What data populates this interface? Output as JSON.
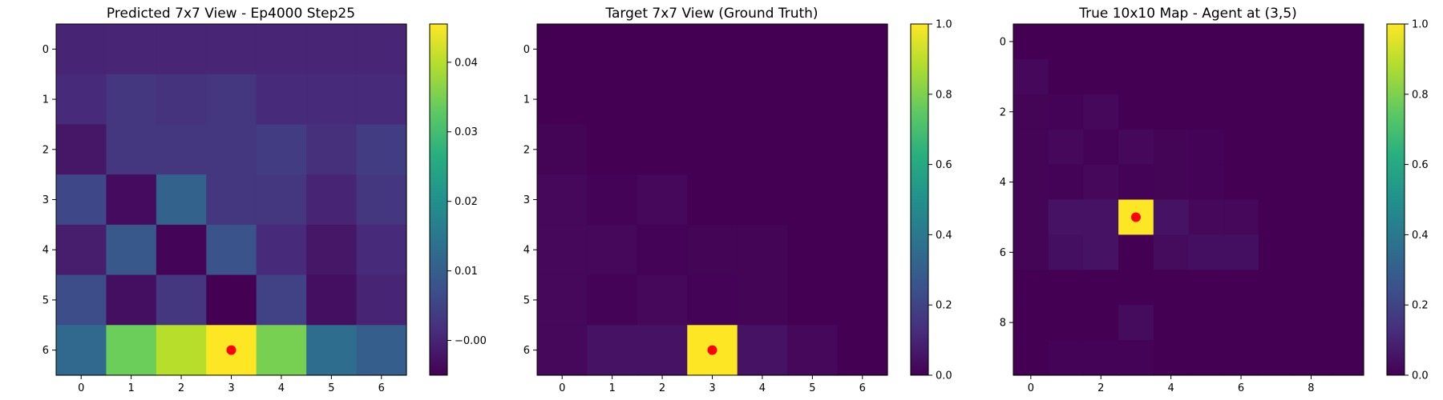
{
  "chart_data": [
    {
      "type": "heatmap",
      "title": "Predicted 7x7 View - Ep4000 Step25",
      "colormap": "viridis",
      "rows": 7,
      "cols": 7,
      "xticks": [
        0,
        1,
        2,
        3,
        4,
        5,
        6
      ],
      "yticks": [
        0,
        1,
        2,
        3,
        4,
        5,
        6
      ],
      "vmin": -0.005,
      "vmax": 0.0455,
      "colorbar_ticks": [
        0.04,
        0.03,
        0.02,
        0.01,
        -0.0
      ],
      "colorbar_labels": [
        "0.04",
        "0.03",
        "0.02",
        "0.01",
        "−0.00"
      ],
      "values": [
        [
          0.0,
          0.0002,
          0.0002,
          0.0002,
          0.0002,
          0.0002,
          0.0002
        ],
        [
          0.001,
          0.003,
          0.0025,
          0.003,
          0.001,
          0.001,
          0.001
        ],
        [
          -0.002,
          0.003,
          0.003,
          0.003,
          0.004,
          0.002,
          0.004
        ],
        [
          0.006,
          -0.0035,
          0.011,
          0.003,
          0.003,
          0.0,
          0.003
        ],
        [
          -0.001,
          0.009,
          -0.0045,
          0.008,
          0.001,
          -0.002,
          0.001
        ],
        [
          0.007,
          -0.003,
          0.003,
          -0.005,
          0.005,
          -0.003,
          0.0
        ],
        [
          0.012,
          0.034,
          0.04,
          0.0455,
          0.035,
          0.013,
          0.01
        ]
      ],
      "marker": {
        "row": 6,
        "col": 3,
        "color": "#ff0000"
      }
    },
    {
      "type": "heatmap",
      "title": "Target 7x7 View (Ground Truth)",
      "colormap": "viridis",
      "rows": 7,
      "cols": 7,
      "xticks": [
        0,
        1,
        2,
        3,
        4,
        5,
        6
      ],
      "yticks": [
        0,
        1,
        2,
        3,
        4,
        5,
        6
      ],
      "vmin": 0.0,
      "vmax": 1.0,
      "colorbar_ticks": [
        1.0,
        0.8,
        0.6,
        0.4,
        0.2,
        0.0
      ],
      "colorbar_labels": [
        "1.0",
        "0.8",
        "0.6",
        "0.4",
        "0.2",
        "0.0"
      ],
      "values": [
        [
          0.0,
          0.0,
          0.0,
          0.0,
          0.0,
          0.0,
          0.0
        ],
        [
          0.0,
          0.0,
          0.0,
          0.0,
          0.0,
          0.0,
          0.0
        ],
        [
          0.01,
          0.0,
          0.0,
          0.0,
          0.0,
          0.0,
          0.0
        ],
        [
          0.02,
          0.005,
          0.02,
          0.0,
          0.0,
          0.0,
          0.0
        ],
        [
          0.02,
          0.02,
          0.005,
          0.01,
          0.01,
          0.0,
          0.0
        ],
        [
          0.02,
          0.005,
          0.02,
          0.005,
          0.01,
          0.0,
          0.0
        ],
        [
          0.02,
          0.05,
          0.05,
          1.0,
          0.05,
          0.02,
          0.0
        ]
      ],
      "marker": {
        "row": 6,
        "col": 3,
        "color": "#ff0000"
      }
    },
    {
      "type": "heatmap",
      "title": "True 10x10 Map - Agent at (3,5)",
      "colormap": "viridis",
      "rows": 10,
      "cols": 10,
      "xticks": [
        0,
        2,
        4,
        6,
        8
      ],
      "yticks": [
        0,
        2,
        4,
        6,
        8
      ],
      "vmin": 0.0,
      "vmax": 1.0,
      "colorbar_ticks": [
        1.0,
        0.8,
        0.6,
        0.4,
        0.2,
        0.0
      ],
      "colorbar_labels": [
        "1.0",
        "0.8",
        "0.6",
        "0.4",
        "0.2",
        "0.0"
      ],
      "values": [
        [
          0,
          0,
          0,
          0,
          0,
          0,
          0,
          0,
          0,
          0
        ],
        [
          0.02,
          0,
          0,
          0,
          0,
          0,
          0,
          0,
          0,
          0
        ],
        [
          0.01,
          0.005,
          0.02,
          0,
          0,
          0,
          0,
          0,
          0,
          0
        ],
        [
          0.01,
          0.02,
          0.005,
          0.02,
          0.01,
          0.005,
          0,
          0,
          0,
          0
        ],
        [
          0.01,
          0.005,
          0.02,
          0.005,
          0.01,
          0.005,
          0,
          0,
          0,
          0
        ],
        [
          0.01,
          0.05,
          0.05,
          1.0,
          0.05,
          0.02,
          0.02,
          0,
          0,
          0
        ],
        [
          0.01,
          0.04,
          0.05,
          0,
          0.03,
          0.04,
          0.04,
          0,
          0,
          0
        ],
        [
          0,
          0,
          0,
          0,
          0,
          0,
          0,
          0,
          0,
          0
        ],
        [
          0,
          0,
          0,
          0.03,
          0,
          0,
          0,
          0,
          0,
          0
        ],
        [
          0,
          0.005,
          0.005,
          0.005,
          0,
          0,
          0,
          0,
          0,
          0
        ]
      ],
      "marker": {
        "row": 5,
        "col": 3,
        "color": "#ff0000"
      }
    }
  ]
}
